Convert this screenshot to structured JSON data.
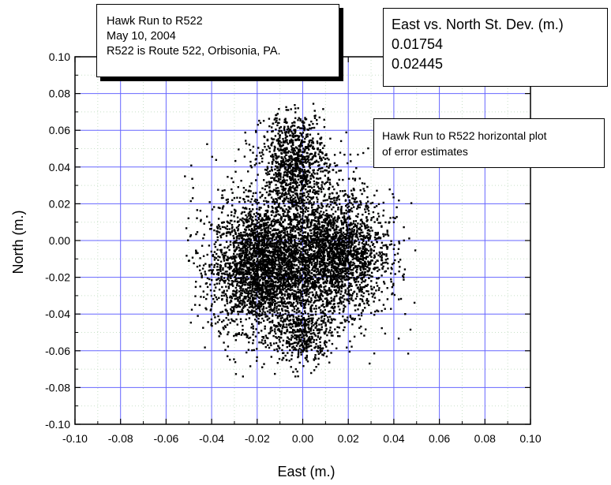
{
  "chart_data": {
    "type": "scatter",
    "xlabel": "East (m.)",
    "ylabel": "North (m.)",
    "xlim": [
      -0.1,
      0.1
    ],
    "ylim": [
      -0.1,
      0.1
    ],
    "xticks": [
      "-0.10",
      "-0.08",
      "-0.06",
      "-0.04",
      "-0.02",
      "0.00",
      "0.02",
      "0.04",
      "0.06",
      "0.08",
      "0.10"
    ],
    "yticks": [
      "-0.10",
      "-0.08",
      "-0.06",
      "-0.04",
      "-0.02",
      "0.00",
      "0.02",
      "0.04",
      "0.06",
      "0.08",
      "0.10"
    ],
    "grid": true,
    "grid_color": "#6666ff",
    "point_color": "#000000",
    "series": [
      {
        "points": [
          [
            -0.035,
            -0.015
          ],
          [
            -0.03,
            -0.02
          ],
          [
            -0.025,
            -0.005
          ],
          [
            -0.02,
            -0.03
          ],
          [
            -0.015,
            0.005
          ],
          [
            -0.01,
            -0.02
          ],
          [
            -0.005,
            -0.035
          ],
          [
            0.0,
            -0.01
          ],
          [
            0.005,
            0.0
          ],
          [
            0.01,
            -0.015
          ],
          [
            0.015,
            -0.005
          ],
          [
            0.02,
            -0.02
          ],
          [
            0.025,
            -0.01
          ],
          [
            0.03,
            -0.025
          ],
          [
            0.035,
            -0.015
          ],
          [
            -0.01,
            0.04
          ],
          [
            -0.005,
            0.055
          ],
          [
            0.0,
            0.065
          ],
          [
            0.005,
            0.05
          ],
          [
            -0.002,
            0.072
          ],
          [
            0.0,
            -0.06
          ],
          [
            -0.003,
            -0.07
          ],
          [
            0.005,
            -0.065
          ],
          [
            -0.045,
            -0.025
          ],
          [
            0.045,
            -0.04
          ],
          [
            0.04,
            0.01
          ],
          [
            -0.04,
            -0.045
          ],
          [
            0.02,
            0.02
          ],
          [
            -0.02,
            0.02
          ],
          [
            0.01,
            -0.05
          ]
        ],
        "clusters": [
          {
            "cx": -0.018,
            "cy": -0.015,
            "sx": 0.011,
            "sy": 0.017,
            "n": 2600
          },
          {
            "cx": 0.014,
            "cy": -0.008,
            "sx": 0.011,
            "sy": 0.015,
            "n": 1900
          },
          {
            "cx": -0.004,
            "cy": 0.042,
            "sx": 0.007,
            "sy": 0.014,
            "n": 1000
          },
          {
            "cx": 0.0,
            "cy": -0.052,
            "sx": 0.006,
            "sy": 0.008,
            "n": 400
          },
          {
            "cx": 0.0,
            "cy": -0.005,
            "sx": 0.02,
            "sy": 0.025,
            "n": 1400
          }
        ]
      }
    ]
  },
  "annotations": {
    "info": {
      "line1": "Hawk Run to R522",
      "line2": "May 10, 2004",
      "line3": "R522 is Route 522, Orbisonia, PA."
    },
    "stdev": {
      "title": "East vs. North St. Dev. (m.)",
      "east": "0.01754",
      "north": "0.02445"
    },
    "description": {
      "line1": "Hawk Run to R522 horizontal plot",
      "line2": " of error estimates"
    }
  }
}
